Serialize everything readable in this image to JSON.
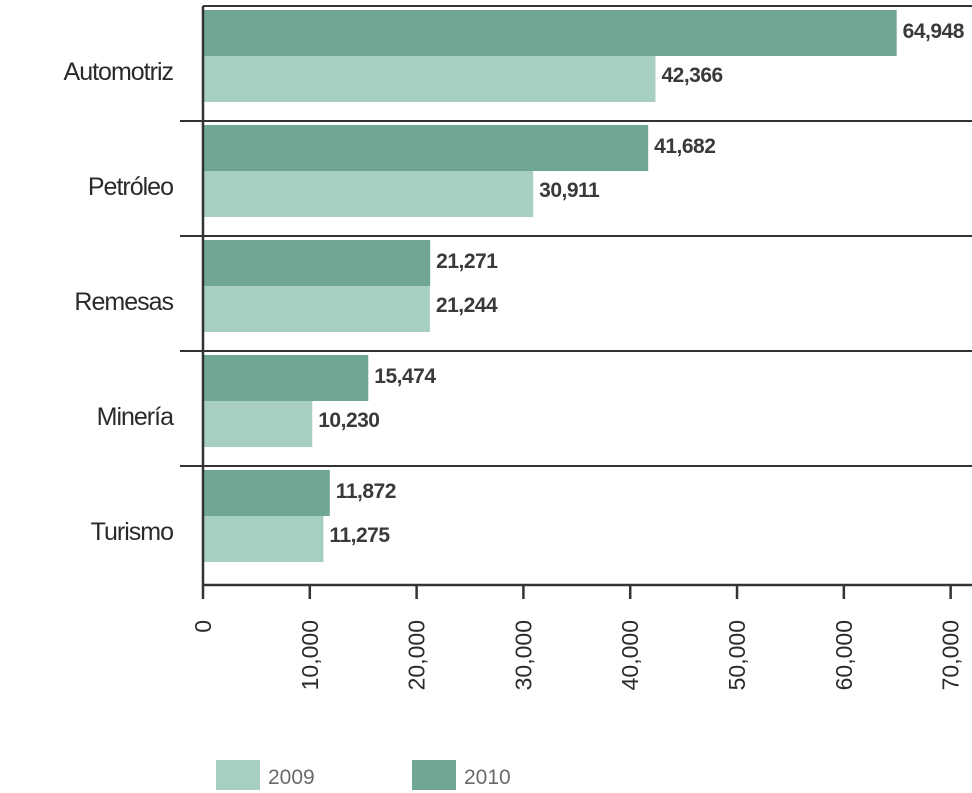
{
  "chart_data": {
    "type": "bar",
    "orientation": "horizontal",
    "categories": [
      "Automotriz",
      "Petróleo",
      "Remesas",
      "Minería",
      "Turismo"
    ],
    "series": [
      {
        "name": "2010",
        "values": [
          64948,
          41682,
          21271,
          15474,
          11872
        ],
        "color": "#6fa696"
      },
      {
        "name": "2009",
        "values": [
          42366,
          30911,
          21244,
          10230,
          11275
        ],
        "color": "#a7cfc1"
      }
    ],
    "data_labels": {
      "2010": [
        "64,948",
        "41,682",
        "21,271",
        "15,474",
        "11,872"
      ],
      "2009": [
        "42,366",
        "30,911",
        "21,244",
        "10,230",
        "11,275"
      ]
    },
    "ticks": [
      0,
      10000,
      20000,
      30000,
      40000,
      50000,
      60000,
      70000
    ],
    "tick_labels": [
      "0",
      "10,000",
      "20,000",
      "30,000",
      "40,000",
      "50,000",
      "60,000",
      "70,000"
    ],
    "xlim": [
      0,
      72000
    ],
    "legend": [
      {
        "label": "2009",
        "color": "#a7cfc1"
      },
      {
        "label": "2010",
        "color": "#6fa696"
      }
    ],
    "legend_position": "bottom-left",
    "grid": false,
    "title": "",
    "xlabel": "",
    "ylabel": ""
  }
}
